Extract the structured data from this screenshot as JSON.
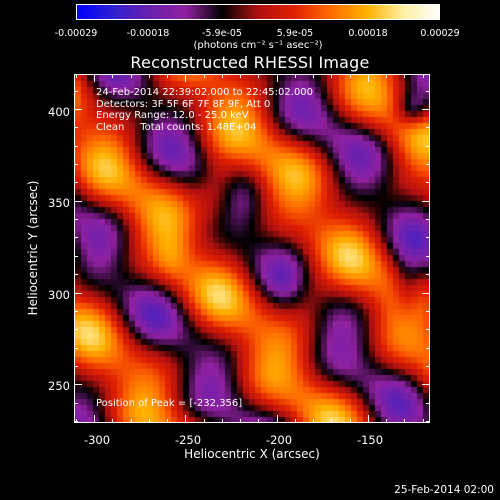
{
  "colorbar": {
    "ticks": [
      "-0.00029",
      "-0.00018",
      "-5.9e-05",
      "5.9e-05",
      "0.00018",
      "0.00029"
    ],
    "unit": "(photons cm⁻² s⁻¹ asec⁻²)",
    "range": [
      -0.00029,
      0.00029
    ]
  },
  "chart_data": {
    "type": "heatmap",
    "title": "Reconstructed RHESSI Image",
    "xlabel": "Heliocentric X (arcsec)",
    "ylabel": "Heliocentric Y (arcsec)",
    "xlim": [
      -311,
      -116
    ],
    "ylim": [
      229,
      419
    ],
    "x_ticks": [
      "-300",
      "-250",
      "-200",
      "-150"
    ],
    "x_tick_values": [
      -300,
      -250,
      -200,
      -150
    ],
    "y_ticks": [
      "250",
      "300",
      "350",
      "400"
    ],
    "y_tick_values": [
      250,
      300,
      350,
      400
    ],
    "colormap": [
      "#0000ff",
      "#3020d0",
      "#6820b0",
      "#9020a0",
      "#000000",
      "#b01010",
      "#e02000",
      "#ff6a00",
      "#ffb000",
      "#fff0a0",
      "#ffffff"
    ],
    "peak_position": [
      -232,
      356
    ],
    "annotations": [
      "24-Feb-2014 22:39:02.000 to 22:45:02.000",
      "Detectors: 3F 5F 6F 7F 8F 9F, Att 0",
      "Energy Range: 12.0 - 25.0 keV",
      "Clean     Total counts: 1.48E+04"
    ],
    "peak_label": "Position of Peak = [-232,356]"
  },
  "datestamp": "25-Feb-2014 02:00"
}
